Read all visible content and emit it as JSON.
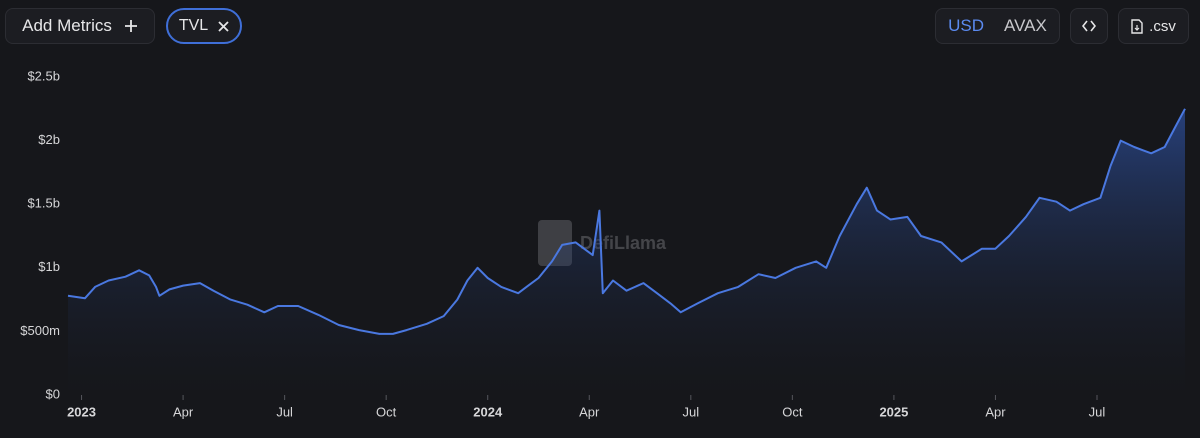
{
  "toolbar": {
    "add_metrics": "Add Metrics",
    "metric": "TVL",
    "currencies": [
      "USD",
      "AVAX"
    ],
    "csv": ".csv"
  },
  "watermark": "DefiLlama",
  "chart_data": {
    "type": "area",
    "color": "#4a78e0",
    "grid": false,
    "x": [
      -0.4,
      0.1,
      0.4,
      0.8,
      1.3,
      1.7,
      2.0,
      2.2,
      2.3,
      2.6,
      3.0,
      3.5,
      3.9,
      4.4,
      4.9,
      5.4,
      5.8,
      6.4,
      7.0,
      7.6,
      8.2,
      8.8,
      9.2,
      9.6,
      10.2,
      10.7,
      11.1,
      11.4,
      11.7,
      12.0,
      12.4,
      12.9,
      13.2,
      13.5,
      13.9,
      14.2,
      14.6,
      15.1,
      15.3,
      15.4,
      15.7,
      16.1,
      16.6,
      17.0,
      17.4,
      17.7,
      18.2,
      18.8,
      19.4,
      20.0,
      20.5,
      21.1,
      21.7,
      22.0,
      22.4,
      22.9,
      23.2,
      23.5,
      23.9,
      24.4,
      24.8,
      25.4,
      26.0,
      26.6,
      27.0,
      27.4,
      27.9,
      28.3,
      28.8,
      29.2,
      29.6,
      30.1,
      30.4,
      30.7,
      31.1,
      31.6,
      32.0,
      32.3,
      32.6
    ],
    "values": [
      780000000,
      760000000,
      850000000,
      900000000,
      930000000,
      980000000,
      940000000,
      850000000,
      780000000,
      830000000,
      860000000,
      880000000,
      820000000,
      750000000,
      710000000,
      650000000,
      700000000,
      700000000,
      630000000,
      550000000,
      510000000,
      480000000,
      480000000,
      510000000,
      560000000,
      620000000,
      750000000,
      900000000,
      1000000000,
      920000000,
      850000000,
      800000000,
      860000000,
      920000000,
      1050000000,
      1180000000,
      1200000000,
      1100000000,
      1450000000,
      800000000,
      900000000,
      820000000,
      880000000,
      800000000,
      720000000,
      650000000,
      720000000,
      800000000,
      850000000,
      950000000,
      920000000,
      1000000000,
      1050000000,
      1000000000,
      1250000000,
      1500000000,
      1630000000,
      1450000000,
      1380000000,
      1400000000,
      1250000000,
      1200000000,
      1050000000,
      1150000000,
      1150000000,
      1250000000,
      1400000000,
      1550000000,
      1520000000,
      1450000000,
      1500000000,
      1550000000,
      1800000000,
      2000000000,
      1950000000,
      1900000000,
      1950000000,
      2100000000,
      2250000000
    ],
    "xlim": [
      -0.4,
      32.6
    ],
    "xticks": [
      {
        "value": 0,
        "label": "2023"
      },
      {
        "value": 3,
        "label": "Apr"
      },
      {
        "value": 6,
        "label": "Jul"
      },
      {
        "value": 9,
        "label": "Oct"
      },
      {
        "value": 12,
        "label": "2024"
      },
      {
        "value": 15,
        "label": "Apr"
      },
      {
        "value": 18,
        "label": "Jul"
      },
      {
        "value": 21,
        "label": "Oct"
      },
      {
        "value": 24,
        "label": "2025"
      },
      {
        "value": 27,
        "label": "Apr"
      },
      {
        "value": 30,
        "label": "Jul"
      }
    ],
    "ylim": [
      0,
      2500000000
    ],
    "yticks": [
      {
        "value": 0,
        "label": "$0"
      },
      {
        "value": 500000000,
        "label": "$500m"
      },
      {
        "value": 1000000000,
        "label": "$1b"
      },
      {
        "value": 1500000000,
        "label": "$1.5b"
      },
      {
        "value": 2000000000,
        "label": "$2b"
      },
      {
        "value": 2500000000,
        "label": "$2.5b"
      }
    ]
  }
}
